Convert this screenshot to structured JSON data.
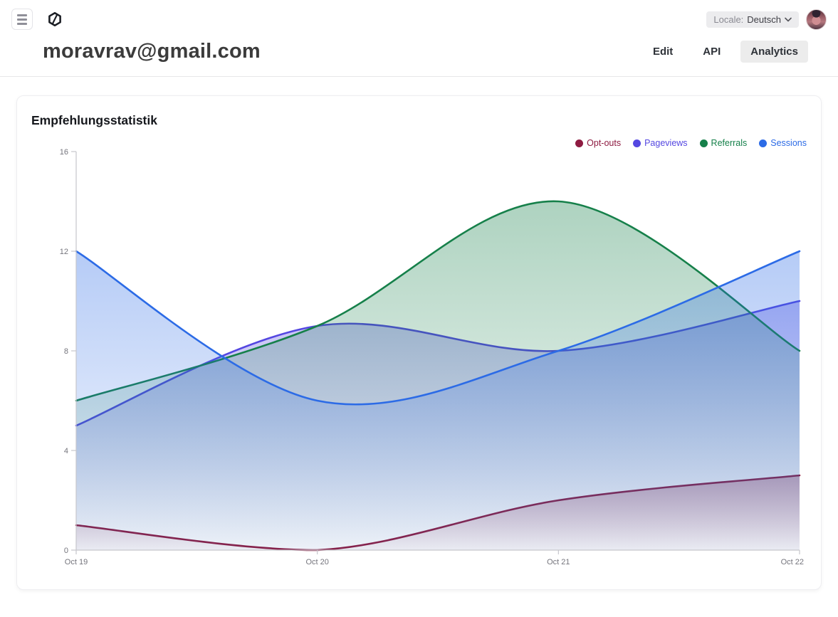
{
  "header": {
    "title": "moravrav@gmail.com",
    "locale_label": "Locale:",
    "locale_value": "Deutsch",
    "tabs": [
      {
        "label": "Edit",
        "active": false
      },
      {
        "label": "API",
        "active": false
      },
      {
        "label": "Analytics",
        "active": true
      }
    ],
    "icons": {
      "menu": "hamburger-icon",
      "logo": "app-hexagon-logo",
      "locale_chevron": "chevron-down-icon",
      "avatar": "user-photo"
    }
  },
  "card": {
    "title": "Empfehlungsstatistik"
  },
  "chart_data": {
    "type": "area",
    "curve": "smooth",
    "grid": false,
    "legend_position": "top-right",
    "x": [
      "Oct 19",
      "Oct 20",
      "Oct 21",
      "Oct 22"
    ],
    "series": [
      {
        "name": "Opt-outs",
        "color": "#8e1b41",
        "values": [
          1,
          0,
          2,
          3
        ]
      },
      {
        "name": "Pageviews",
        "color": "#5447e1",
        "values": [
          5,
          9,
          8,
          10
        ]
      },
      {
        "name": "Referrals",
        "color": "#16804a",
        "values": [
          6,
          9,
          14,
          8
        ]
      },
      {
        "name": "Sessions",
        "color": "#2c6be6",
        "values": [
          12,
          6,
          8,
          12
        ]
      }
    ],
    "ylim": [
      0,
      16
    ],
    "yticks": [
      0,
      4,
      8,
      12,
      16
    ],
    "xlabel": "",
    "ylabel": "",
    "axis_color": "#c6c6cc",
    "fill_opacity_top": 0.35,
    "fill_opacity_bottom": 0.03
  }
}
